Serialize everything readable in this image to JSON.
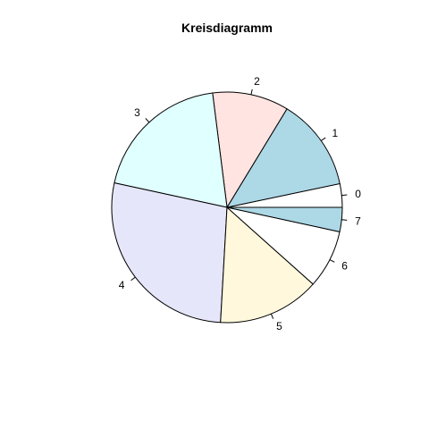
{
  "chart_data": {
    "type": "pie",
    "title": "Kreisdiagramm",
    "start_angle_deg": 0,
    "direction": "counterclockwise",
    "slices": [
      {
        "label": "0",
        "value": 3.3,
        "color": "#ffffff"
      },
      {
        "label": "1",
        "value": 13.0,
        "color": "#add8e6"
      },
      {
        "label": "2",
        "value": 10.7,
        "color": "#ffe4e1"
      },
      {
        "label": "3",
        "value": 19.6,
        "color": "#e0ffff"
      },
      {
        "label": "4",
        "value": 27.5,
        "color": "#e6e6fa"
      },
      {
        "label": "5",
        "value": 14.3,
        "color": "#fff8dc"
      },
      {
        "label": "6",
        "value": 8.2,
        "color": "#ffffff"
      },
      {
        "label": "7",
        "value": 3.4,
        "color": "#add8e6"
      }
    ]
  }
}
